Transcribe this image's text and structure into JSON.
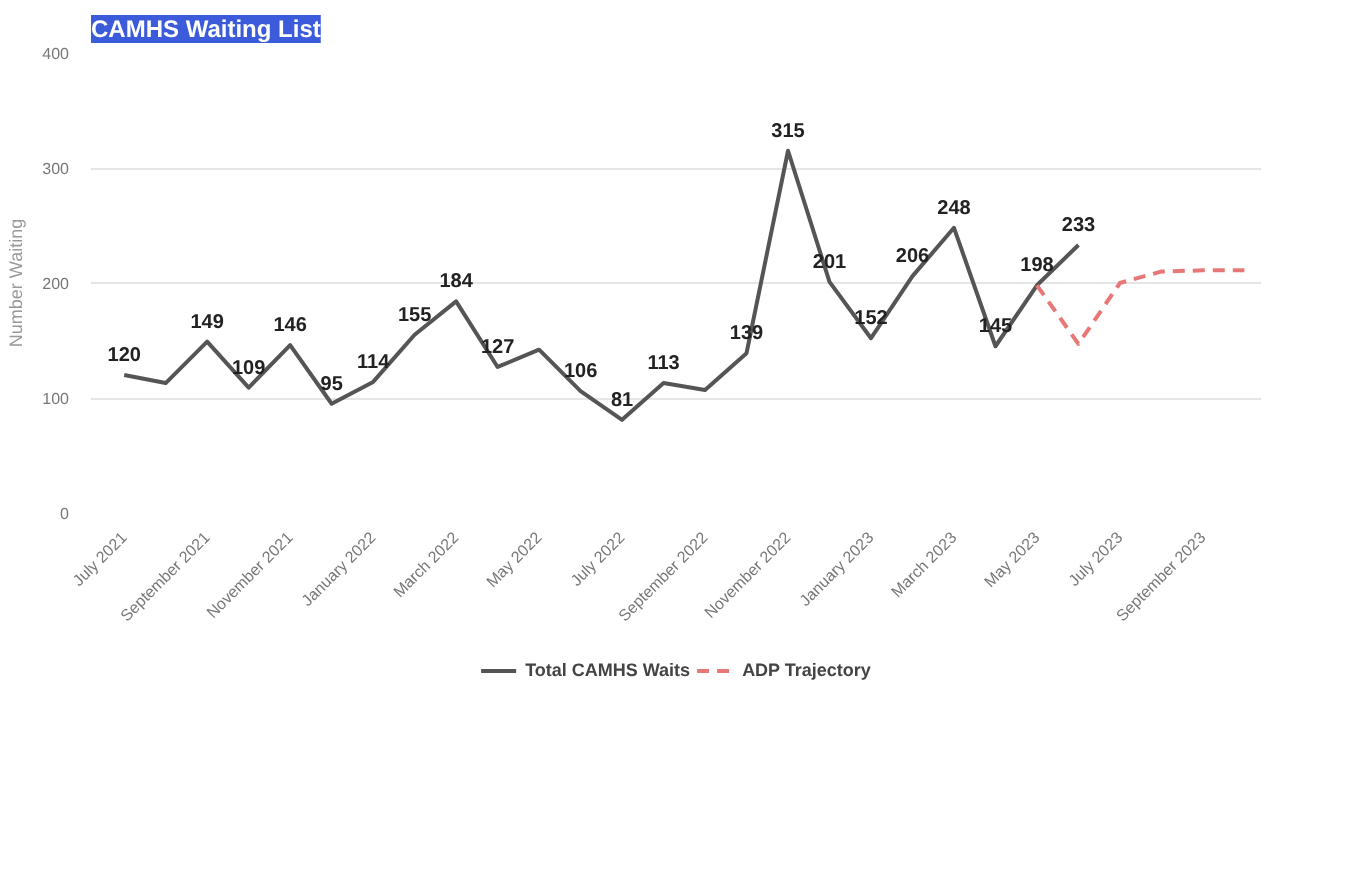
{
  "chart_data": {
    "type": "line",
    "title": "CAMHS Waiting List",
    "ylabel": "Number Waiting",
    "categories": [
      "July 2021",
      null,
      "September 2021",
      null,
      "November 2021",
      null,
      "January 2022",
      null,
      "March 2022",
      null,
      "May 2022",
      null,
      "July 2022",
      null,
      "September 2022",
      null,
      "November 2022",
      null,
      "January 2023",
      null,
      "March 2023",
      null,
      "May 2023",
      null,
      "July 2023",
      null,
      "September 2023",
      null
    ],
    "series": [
      {
        "name": "Total CAMHS Waits",
        "color": "#555555",
        "line_style": "solid",
        "values": [
          120,
          113,
          149,
          109,
          146,
          95,
          114,
          155,
          184,
          127,
          142,
          106,
          81,
          113,
          107,
          139,
          315,
          201,
          152,
          206,
          248,
          145,
          198,
          233,
          null,
          null,
          null,
          null
        ],
        "value_labels": [
          "120",
          null,
          "149",
          "109",
          "146",
          "95",
          "114",
          "155",
          "184",
          "127",
          null,
          "106",
          "81",
          "113",
          null,
          "139",
          "315",
          "201",
          "152",
          "206",
          "248",
          "145",
          "198",
          "233",
          null,
          null,
          null,
          null
        ]
      },
      {
        "name": "ADP Trajectory",
        "color": "#e87878",
        "line_style": "dashed",
        "values": [
          null,
          null,
          null,
          null,
          null,
          null,
          null,
          null,
          null,
          null,
          null,
          null,
          null,
          null,
          null,
          null,
          null,
          null,
          null,
          null,
          null,
          null,
          198,
          147,
          200,
          210,
          211,
          211
        ]
      }
    ],
    "ylim": [
      0,
      400
    ],
    "yticks": [
      0,
      100,
      200,
      300,
      400
    ],
    "grid": "y",
    "legend": "bottom",
    "marker": "none"
  }
}
